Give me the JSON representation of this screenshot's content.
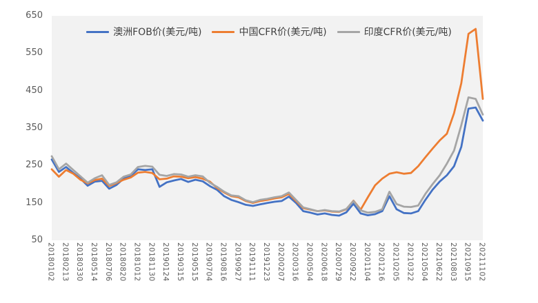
{
  "chart_data": {
    "type": "line",
    "title": "",
    "ylim": [
      50,
      650
    ],
    "y_ticks": [
      650,
      550,
      450,
      350,
      250,
      150,
      50
    ],
    "grid": false,
    "legend_position": "top",
    "plot_bg": "#F2F2F2",
    "axis_label_color": "#595959",
    "x_tick_labels": [
      "20180102",
      "20180213",
      "20180330",
      "20180514",
      "20180706",
      "20180820",
      "20181012",
      "20181130",
      "20190124",
      "20190315",
      "20190515",
      "20190704",
      "20190816",
      "20190927",
      "20191111",
      "20191223",
      "20200207",
      "20200316",
      "20200504",
      "20200618",
      "20200729",
      "20200922",
      "20201104",
      "20201216",
      "20210205",
      "20210322",
      "20210504",
      "20210622",
      "20210803",
      "20210915",
      "20211102"
    ],
    "sampling_note": "values sampled at each x tick label and at the midpoint between consecutive labels (even indices = labeled dates)",
    "series": [
      {
        "name": "澳洲FOB价(美元/吨)",
        "color": "#4472C4",
        "values": [
          266,
          233,
          246,
          230,
          215,
          196,
          207,
          209,
          188,
          198,
          215,
          222,
          240,
          238,
          240,
          193,
          205,
          210,
          214,
          206,
          212,
          208,
          195,
          185,
          168,
          158,
          152,
          145,
          142,
          146,
          150,
          153,
          155,
          167,
          150,
          128,
          124,
          119,
          122,
          118,
          116,
          125,
          148,
          122,
          117,
          120,
          128,
          168,
          133,
          123,
          122,
          128,
          158,
          185,
          207,
          224,
          248,
          300,
          402,
          405,
          370
        ]
      },
      {
        "name": "中国CFR价(美元/吨)",
        "color": "#ED7D31",
        "values": [
          240,
          220,
          238,
          228,
          212,
          202,
          211,
          215,
          195,
          203,
          212,
          218,
          231,
          233,
          230,
          213,
          215,
          221,
          220,
          216,
          219,
          215,
          207,
          190,
          178,
          168,
          165,
          155,
          150,
          155,
          158,
          162,
          165,
          174,
          155,
          136,
          132,
          128,
          130,
          127,
          126,
          133,
          156,
          132,
          165,
          197,
          215,
          228,
          232,
          228,
          230,
          248,
          272,
          295,
          317,
          335,
          390,
          470,
          602,
          615,
          428
        ]
      },
      {
        "name": "印度CFR价(美元/吨)",
        "color": "#A5A5A5",
        "values": [
          275,
          240,
          255,
          238,
          221,
          204,
          216,
          224,
          198,
          205,
          220,
          226,
          246,
          249,
          247,
          225,
          222,
          227,
          226,
          220,
          224,
          221,
          204,
          193,
          180,
          170,
          168,
          157,
          152,
          158,
          161,
          165,
          168,
          178,
          158,
          138,
          133,
          128,
          131,
          128,
          127,
          134,
          155,
          130,
          124,
          126,
          133,
          180,
          147,
          140,
          139,
          143,
          174,
          200,
          224,
          255,
          290,
          358,
          432,
          428,
          386
        ]
      }
    ]
  }
}
